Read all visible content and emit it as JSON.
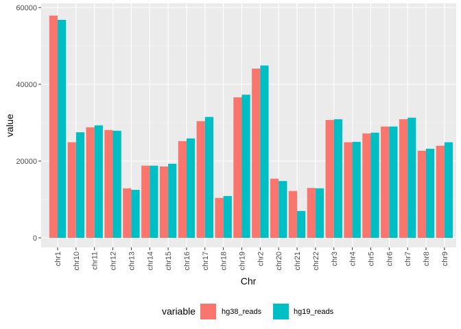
{
  "chart_data": {
    "type": "bar",
    "xlabel": "Chr",
    "ylabel": "value",
    "ylim": [
      0,
      60000
    ],
    "yticks": [
      0,
      20000,
      40000,
      60000
    ],
    "ytick_labels": [
      "0",
      "20000",
      "40000",
      "60000"
    ],
    "grid": true,
    "panel_background": "#ebebeb",
    "categories": [
      "chr1",
      "chr10",
      "chr11",
      "chr12",
      "chr13",
      "chr14",
      "chr15",
      "chr16",
      "chr17",
      "chr18",
      "chr19",
      "chr2",
      "chr20",
      "chr21",
      "chr22",
      "chr3",
      "chr4",
      "chr5",
      "chr6",
      "chr7",
      "chr8",
      "chr9"
    ],
    "series": [
      {
        "name": "hg38_reads",
        "color": "#F8766D",
        "values": [
          57900,
          24900,
          28800,
          28100,
          12900,
          18800,
          18600,
          25200,
          30400,
          10400,
          36600,
          44100,
          15400,
          12200,
          13000,
          30700,
          24900,
          27200,
          29000,
          30900,
          22700,
          24000
        ]
      },
      {
        "name": "hg19_reads",
        "color": "#00BFC4",
        "values": [
          56800,
          27500,
          29300,
          27900,
          12500,
          18800,
          19300,
          25900,
          31500,
          10900,
          37300,
          44900,
          14800,
          7000,
          12900,
          30900,
          25000,
          27400,
          29000,
          31300,
          23200,
          24900
        ]
      }
    ],
    "legend": {
      "title": "variable",
      "position": "bottom"
    }
  }
}
